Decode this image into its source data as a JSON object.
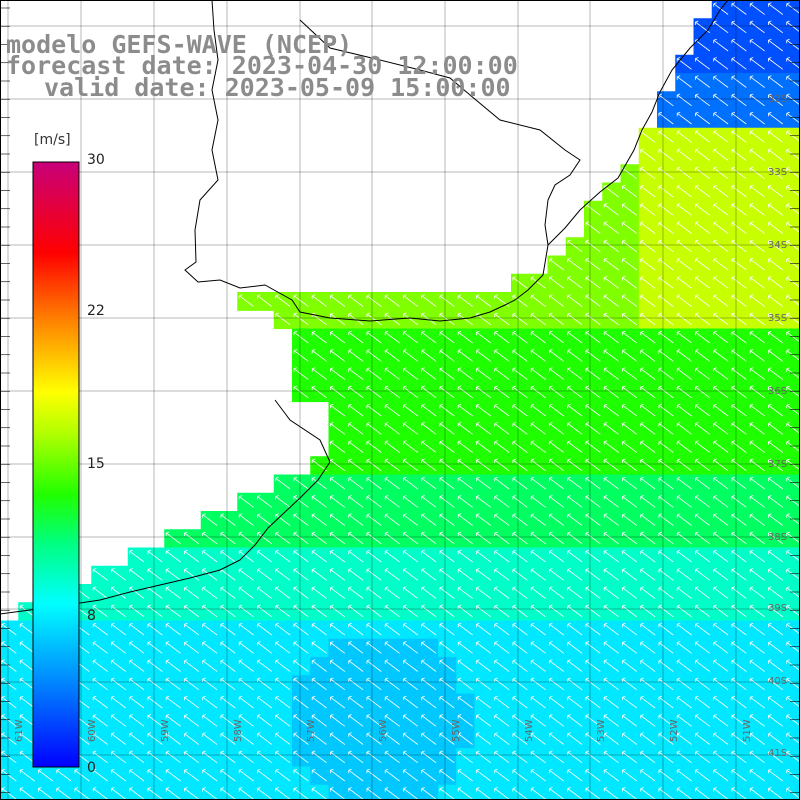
{
  "title": {
    "line1": "modelo GEFS-WAVE (NCEP)",
    "line2": "forecast date: 2023-04-30 12:00:00",
    "line3": "valid date: 2023-05-09 15:00:00"
  },
  "colorbar": {
    "unit": "[m/s]",
    "ticks": [
      "30",
      "22",
      "15",
      "8",
      "0"
    ],
    "tick_values": [
      30,
      22,
      15,
      8,
      0
    ],
    "range": [
      0,
      30
    ]
  },
  "lat_labels": [
    "32S",
    "33S",
    "34S",
    "35S",
    "36S",
    "37S",
    "38S",
    "39S",
    "40S",
    "41S"
  ],
  "lon_labels": [
    "61W",
    "60W",
    "59W",
    "58W",
    "57W",
    "56W",
    "55W",
    "54W",
    "53W",
    "52W",
    "51W"
  ],
  "colors": {
    "land": "#ffffff",
    "coast": "#000000",
    "grid": "#000000",
    "vector": "#ffffff",
    "title_text": "#8c8c8c"
  }
}
